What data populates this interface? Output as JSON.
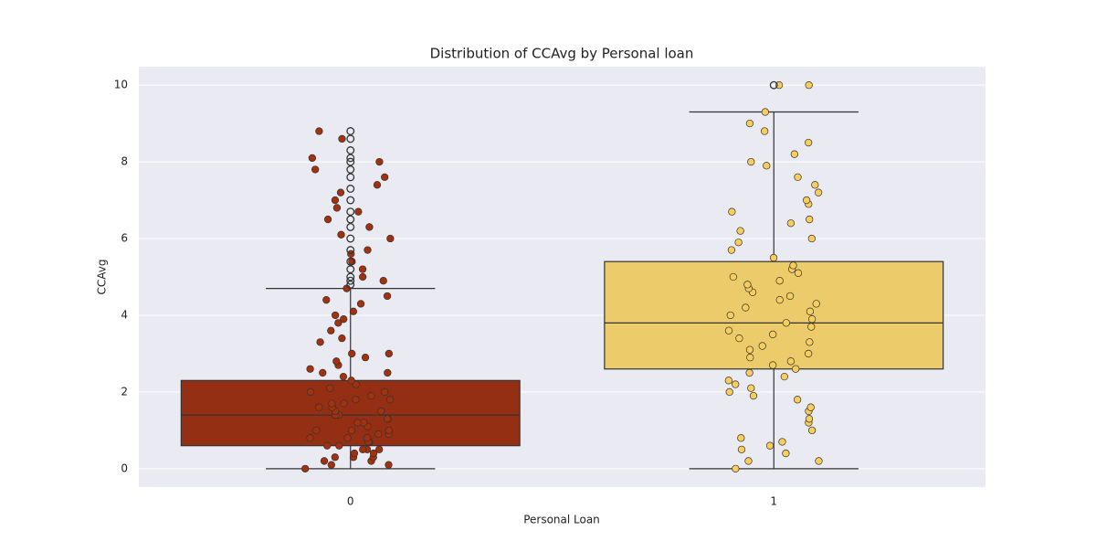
{
  "chart_data": {
    "type": "box",
    "title": "Distribution of CCAvg by Personal loan",
    "x_label": "Personal Loan",
    "y_label": "CCAvg",
    "categories": [
      "0",
      "1"
    ],
    "ylim": [
      -0.48,
      10.48
    ],
    "yticks": [
      0,
      2,
      4,
      6,
      8,
      10
    ],
    "grid": true,
    "boxes": [
      {
        "color": "#952f14",
        "point_color": "#a3310e",
        "whislo": 0,
        "q1": 0.6,
        "med": 1.4,
        "q3": 2.3,
        "whishi": 4.7,
        "fliers": [
          4.8,
          4.9,
          5.0,
          5.2,
          5.4,
          5.7,
          6.0,
          6.3,
          6.5,
          6.7,
          7.0,
          7.3,
          7.6,
          7.8,
          8.0,
          8.1,
          8.3,
          8.6,
          8.8
        ],
        "points": [
          0.0,
          0.1,
          0.1,
          0.2,
          0.2,
          0.3,
          0.3,
          0.3,
          0.4,
          0.4,
          0.5,
          0.5,
          0.5,
          0.6,
          0.6,
          0.7,
          0.7,
          0.8,
          0.8,
          0.8,
          0.9,
          0.9,
          1.0,
          1.0,
          1.0,
          1.1,
          1.2,
          1.2,
          1.3,
          1.3,
          1.4,
          1.4,
          1.5,
          1.5,
          1.6,
          1.6,
          1.7,
          1.7,
          1.8,
          1.8,
          1.9,
          2.0,
          2.0,
          2.1,
          2.2,
          2.3,
          2.4,
          2.5,
          2.5,
          2.6,
          2.7,
          2.8,
          2.9,
          3.0,
          3.0,
          3.3,
          3.4,
          3.6,
          3.8,
          3.9,
          4.0,
          4.1,
          4.3,
          4.4,
          4.5,
          4.7,
          4.9,
          5.0,
          5.2,
          5.4,
          5.6,
          5.7,
          6.0,
          6.1,
          6.3,
          6.5,
          6.7,
          6.8,
          7.0,
          7.2,
          7.4,
          7.6,
          7.8,
          8.0,
          8.1,
          8.6,
          8.8
        ]
      },
      {
        "color": "#eccb6a",
        "point_color": "#f7ce5b",
        "whislo": 0,
        "q1": 2.6,
        "med": 3.8,
        "q3": 5.4,
        "whishi": 9.3,
        "fliers": [
          10.0
        ],
        "points": [
          0.0,
          0.2,
          0.2,
          0.4,
          0.5,
          0.6,
          0.7,
          0.8,
          1.0,
          1.2,
          1.3,
          1.5,
          1.6,
          1.8,
          1.9,
          2.0,
          2.1,
          2.2,
          2.3,
          2.4,
          2.5,
          2.6,
          2.7,
          2.8,
          2.9,
          3.0,
          3.1,
          3.2,
          3.3,
          3.4,
          3.5,
          3.6,
          3.7,
          3.8,
          3.9,
          4.0,
          4.1,
          4.2,
          4.3,
          4.4,
          4.5,
          4.6,
          4.7,
          4.8,
          4.9,
          5.0,
          5.1,
          5.2,
          5.3,
          5.5,
          5.7,
          5.9,
          6.0,
          6.2,
          6.4,
          6.5,
          6.7,
          6.9,
          7.0,
          7.2,
          7.4,
          7.6,
          7.9,
          8.0,
          8.2,
          8.5,
          8.8,
          9.0,
          9.3,
          10.0,
          10.0
        ]
      }
    ]
  }
}
